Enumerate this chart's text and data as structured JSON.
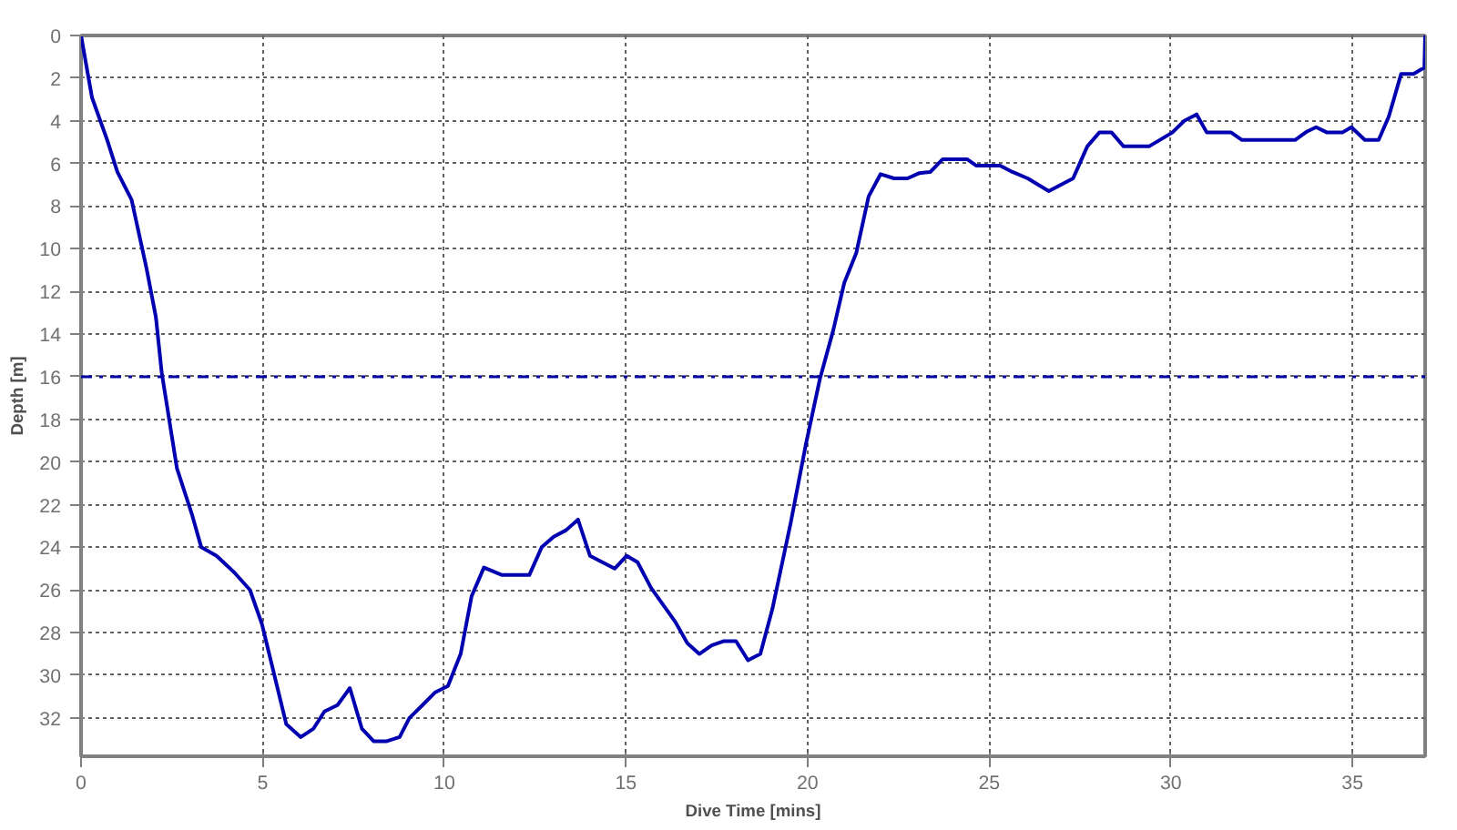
{
  "chart_data": {
    "type": "line",
    "xlabel": "Dive Time [mins]",
    "ylabel": "Depth [m]",
    "xlim": [
      0,
      37
    ],
    "ylim": [
      33.8,
      0
    ],
    "xticks": [
      0,
      5,
      10,
      15,
      20,
      25,
      30,
      35
    ],
    "yticks": [
      0,
      2,
      4,
      6,
      8,
      10,
      12,
      14,
      16,
      18,
      20,
      22,
      24,
      26,
      28,
      30,
      32
    ],
    "grid": true,
    "marker": "none",
    "line_style": "solid",
    "ref_lines": [
      {
        "axis": "y",
        "value": 16,
        "color": "#0000a0",
        "line_style": "dashdot"
      }
    ],
    "series": [
      {
        "color": "#0000b0",
        "x": [
          0,
          0.3,
          0.72,
          1.0,
          1.39,
          1.8,
          2.06,
          2.22,
          2.64,
          3.06,
          3.31,
          3.73,
          4.23,
          4.65,
          4.98,
          5.65,
          6.05,
          6.4,
          6.7,
          7.06,
          7.4,
          7.73,
          8.06,
          8.4,
          8.77,
          9.04,
          9.4,
          9.75,
          10.1,
          10.45,
          10.75,
          11.09,
          11.59,
          12.34,
          12.68,
          13.01,
          13.35,
          13.68,
          14.01,
          14.69,
          15.02,
          15.32,
          15.69,
          16.36,
          16.69,
          17.02,
          17.36,
          17.7,
          18.03,
          18.36,
          18.7,
          19.03,
          19.53,
          19.95,
          20.34,
          20.71,
          21.01,
          21.34,
          21.68,
          22.01,
          22.38,
          22.75,
          23.08,
          23.38,
          23.72,
          24.39,
          24.64,
          25.3,
          25.64,
          26.06,
          26.64,
          27.31,
          27.7,
          28.03,
          28.37,
          28.7,
          29.4,
          30.04,
          30.37,
          30.71,
          30.99,
          31.66,
          31.96,
          33.42,
          33.75,
          34.0,
          34.3,
          34.72,
          34.97,
          35.34,
          35.72,
          36.0,
          36.34,
          36.68,
          36.98,
          37.0
        ],
        "values": [
          0,
          2.9,
          4.9,
          6.4,
          7.7,
          10.9,
          13.2,
          15.8,
          20.3,
          22.5,
          24.0,
          24.4,
          25.2,
          26.0,
          27.6,
          32.3,
          32.9,
          32.5,
          31.7,
          31.4,
          30.6,
          32.5,
          33.1,
          33.1,
          32.9,
          32.0,
          31.4,
          30.8,
          30.5,
          29.0,
          26.3,
          24.95,
          25.3,
          25.3,
          24.0,
          23.5,
          23.2,
          22.7,
          24.4,
          25.0,
          24.4,
          24.7,
          25.9,
          27.5,
          28.5,
          29.0,
          28.6,
          28.4,
          28.4,
          29.3,
          29.0,
          26.9,
          22.9,
          19.2,
          16.1,
          13.8,
          11.6,
          10.2,
          7.55,
          6.5,
          6.7,
          6.7,
          6.45,
          6.4,
          5.8,
          5.8,
          6.1,
          6.1,
          6.4,
          6.7,
          7.3,
          6.7,
          5.2,
          4.55,
          4.55,
          5.2,
          5.2,
          4.55,
          4.0,
          3.7,
          4.55,
          4.55,
          4.9,
          4.9,
          4.5,
          4.3,
          4.55,
          4.55,
          4.3,
          4.9,
          4.9,
          3.8,
          1.8,
          1.8,
          1.5,
          0
        ]
      }
    ]
  }
}
